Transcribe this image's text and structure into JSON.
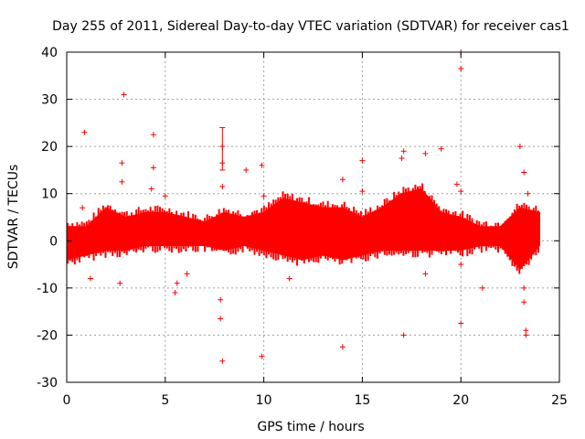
{
  "chart_data": {
    "type": "scatter",
    "title": "Day 255 of 2011, Sidereal Day-to-day VTEC variation (SDTVAR) for receiver cas1",
    "xlabel": "GPS time / hours",
    "ylabel": "SDTVAR / TECUs",
    "xlim": [
      0,
      25
    ],
    "ylim": [
      -30,
      40
    ],
    "xticks": [
      0,
      5,
      10,
      15,
      20,
      25
    ],
    "yticks": [
      -30,
      -20,
      -10,
      0,
      10,
      20,
      30,
      40
    ],
    "grid": true,
    "marker": "+",
    "color": "#ff0000",
    "band_envelope": [
      {
        "x": 0.0,
        "lo": -4,
        "hi": 3
      },
      {
        "x": 1.0,
        "lo": -3,
        "hi": 3
      },
      {
        "x": 2.0,
        "lo": -2,
        "hi": 7
      },
      {
        "x": 3.0,
        "lo": -2,
        "hi": 5
      },
      {
        "x": 4.0,
        "lo": -1,
        "hi": 6
      },
      {
        "x": 5.0,
        "lo": -1,
        "hi": 6
      },
      {
        "x": 6.0,
        "lo": -1,
        "hi": 5
      },
      {
        "x": 7.0,
        "lo": -1,
        "hi": 4
      },
      {
        "x": 8.0,
        "lo": -2,
        "hi": 6
      },
      {
        "x": 9.0,
        "lo": -1,
        "hi": 5
      },
      {
        "x": 10.0,
        "lo": -2,
        "hi": 6
      },
      {
        "x": 11.0,
        "lo": -3,
        "hi": 9
      },
      {
        "x": 12.0,
        "lo": -4,
        "hi": 8
      },
      {
        "x": 13.0,
        "lo": -3,
        "hi": 7
      },
      {
        "x": 14.0,
        "lo": -4,
        "hi": 7
      },
      {
        "x": 15.0,
        "lo": -3,
        "hi": 5
      },
      {
        "x": 16.0,
        "lo": -2,
        "hi": 7
      },
      {
        "x": 17.0,
        "lo": -2,
        "hi": 10
      },
      {
        "x": 18.0,
        "lo": -2,
        "hi": 11
      },
      {
        "x": 19.0,
        "lo": -2,
        "hi": 6
      },
      {
        "x": 20.0,
        "lo": -2,
        "hi": 5
      },
      {
        "x": 21.0,
        "lo": -1,
        "hi": 3
      },
      {
        "x": 22.0,
        "lo": -1,
        "hi": 3
      },
      {
        "x": 23.0,
        "lo": -6,
        "hi": 7
      },
      {
        "x": 24.0,
        "lo": -1,
        "hi": 6
      }
    ],
    "outliers": [
      {
        "x": 0.9,
        "y": 23
      },
      {
        "x": 0.8,
        "y": 7
      },
      {
        "x": 1.2,
        "y": -8
      },
      {
        "x": 2.9,
        "y": 31
      },
      {
        "x": 2.8,
        "y": 16.5
      },
      {
        "x": 2.8,
        "y": 12.5
      },
      {
        "x": 2.7,
        "y": -9
      },
      {
        "x": 4.4,
        "y": 22.5
      },
      {
        "x": 4.4,
        "y": 15.5
      },
      {
        "x": 4.3,
        "y": 11
      },
      {
        "x": 5.0,
        "y": 9.5
      },
      {
        "x": 5.5,
        "y": -11
      },
      {
        "x": 5.6,
        "y": -9
      },
      {
        "x": 6.1,
        "y": -7
      },
      {
        "x": 7.9,
        "y": 20
      },
      {
        "x": 7.9,
        "y": 16.5
      },
      {
        "x": 7.9,
        "y": 11.5
      },
      {
        "x": 7.8,
        "y": -12.5
      },
      {
        "x": 7.8,
        "y": -16.5
      },
      {
        "x": 7.9,
        "y": -25.5
      },
      {
        "x": 9.1,
        "y": 15
      },
      {
        "x": 9.9,
        "y": 16
      },
      {
        "x": 10.0,
        "y": 9.5
      },
      {
        "x": 9.9,
        "y": -24.5
      },
      {
        "x": 11.3,
        "y": -8
      },
      {
        "x": 14.0,
        "y": 13
      },
      {
        "x": 14.0,
        "y": -22.5
      },
      {
        "x": 15.0,
        "y": 17
      },
      {
        "x": 15.0,
        "y": 10.5
      },
      {
        "x": 17.1,
        "y": 19
      },
      {
        "x": 17.0,
        "y": 17.5
      },
      {
        "x": 17.1,
        "y": -20
      },
      {
        "x": 18.2,
        "y": 18.5
      },
      {
        "x": 18.2,
        "y": -7
      },
      {
        "x": 19.0,
        "y": 19.5
      },
      {
        "x": 19.8,
        "y": 12
      },
      {
        "x": 20.0,
        "y": 40
      },
      {
        "x": 20.0,
        "y": 36.5
      },
      {
        "x": 20.0,
        "y": 10.5
      },
      {
        "x": 20.0,
        "y": -5
      },
      {
        "x": 20.0,
        "y": -17.5
      },
      {
        "x": 21.1,
        "y": -10
      },
      {
        "x": 23.0,
        "y": 20
      },
      {
        "x": 23.2,
        "y": 14.5
      },
      {
        "x": 23.4,
        "y": 10
      },
      {
        "x": 23.2,
        "y": -10
      },
      {
        "x": 23.2,
        "y": -13
      },
      {
        "x": 23.3,
        "y": -19
      },
      {
        "x": 23.3,
        "y": -20
      }
    ],
    "error_bars": [
      {
        "x": 7.9,
        "y": 19,
        "lo": 15,
        "hi": 24
      }
    ]
  },
  "colors": {
    "series": "#ff0000",
    "grid": "#a0a0a0",
    "axis": "#000000"
  }
}
